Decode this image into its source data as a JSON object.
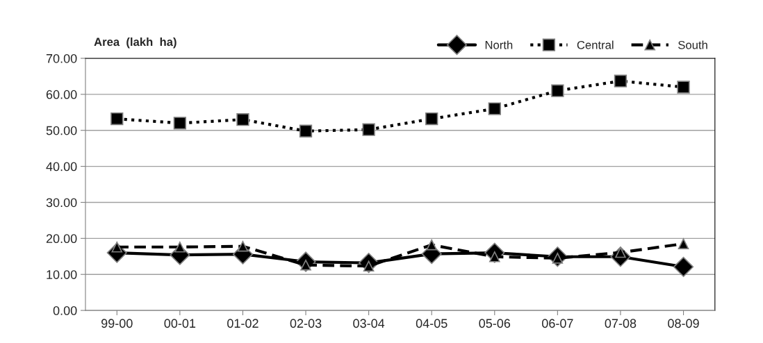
{
  "chart_data": {
    "type": "line",
    "title": "Area  (lakh  ha)",
    "categories": [
      "99-00",
      "00-01",
      "01-02",
      "02-03",
      "03-04",
      "04-05",
      "05-06",
      "06-07",
      "07-08",
      "08-09"
    ],
    "series": [
      {
        "name": "North",
        "color": "#000000",
        "marker": "diamond",
        "line_style": "solid",
        "values": [
          16.0,
          15.4,
          15.6,
          13.5,
          13.2,
          15.7,
          16.0,
          14.9,
          14.9,
          12.1
        ]
      },
      {
        "name": "Central",
        "color": "#000000",
        "marker": "square",
        "line_style": "dotted",
        "values": [
          53.2,
          52.0,
          53.0,
          49.8,
          50.2,
          53.2,
          56.0,
          61.0,
          63.7,
          62.0
        ]
      },
      {
        "name": "South",
        "color": "#000000",
        "marker": "triangle",
        "line_style": "dashed",
        "values": [
          17.6,
          17.6,
          17.8,
          12.6,
          12.3,
          18.2,
          14.9,
          14.5,
          16.1,
          18.5
        ]
      }
    ],
    "ylim": [
      0,
      70
    ],
    "yticks": [
      {
        "value": 0,
        "label": "0.00"
      },
      {
        "value": 10,
        "label": "10.00"
      },
      {
        "value": 20,
        "label": "20.00"
      },
      {
        "value": 30,
        "label": "30.00"
      },
      {
        "value": 40,
        "label": "40.00"
      },
      {
        "value": 50,
        "label": "50.00"
      },
      {
        "value": 60,
        "label": "60.00"
      },
      {
        "value": 70,
        "label": "70.00"
      }
    ],
    "grid": "y",
    "legend": "top right"
  }
}
